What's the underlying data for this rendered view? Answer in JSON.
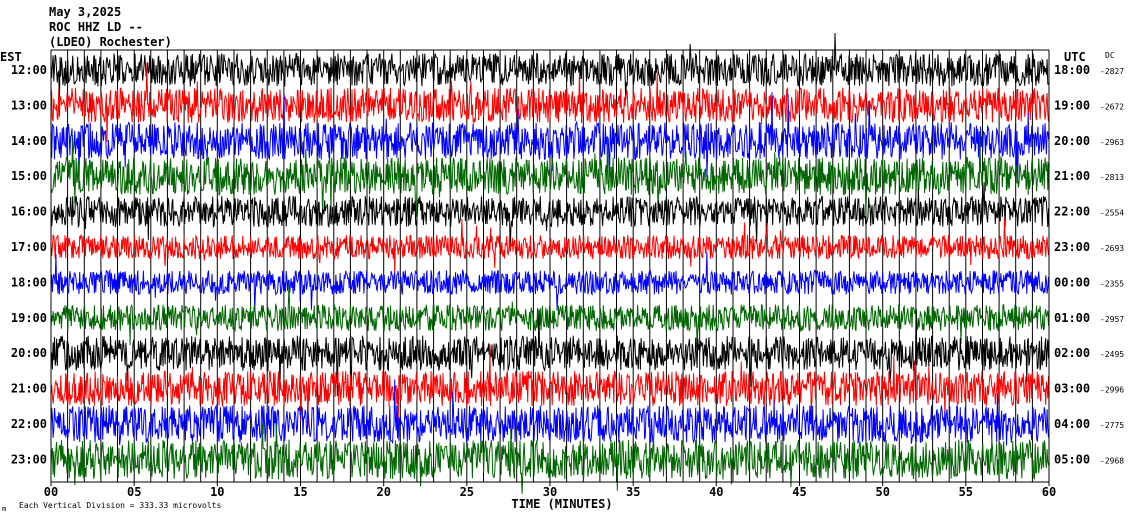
{
  "header": {
    "date": "May 3,2025",
    "station": "ROC HHZ LD --",
    "network": "(LDEO) Rochester)"
  },
  "labels": {
    "left_zone": "EST",
    "right_zone": "UTC",
    "dc_header": "DC",
    "xlabel": "TIME (MINUTES)",
    "footnote": "Each Vertical Division =  333.33 microvolts",
    "footnote_mark": "m"
  },
  "chart_data": {
    "type": "line",
    "title": "May 3,2025",
    "xlabel": "TIME (MINUTES)",
    "xlim": [
      0,
      60
    ],
    "xticks": [
      "00",
      "05",
      "10",
      "15",
      "20",
      "25",
      "30",
      "35",
      "40",
      "45",
      "50",
      "55",
      "60"
    ],
    "grid": "vertical lines every minute",
    "color_cycle": [
      "#000000",
      "#ff0000",
      "#0000ff",
      "#006600"
    ],
    "rows": [
      {
        "est": "12:00",
        "utc": "18:00",
        "dc": "-2827",
        "amp": 0.75
      },
      {
        "est": "13:00",
        "utc": "19:00",
        "dc": "-2672",
        "amp": 0.8
      },
      {
        "est": "14:00",
        "utc": "20:00",
        "dc": "-2963",
        "amp": 0.85
      },
      {
        "est": "15:00",
        "utc": "21:00",
        "dc": "-2813",
        "amp": 0.85
      },
      {
        "est": "16:00",
        "utc": "22:00",
        "dc": "-2554",
        "amp": 0.7
      },
      {
        "est": "17:00",
        "utc": "23:00",
        "dc": "-2693",
        "amp": 0.55
      },
      {
        "est": "18:00",
        "utc": "00:00",
        "dc": "-2355",
        "amp": 0.55
      },
      {
        "est": "19:00",
        "utc": "01:00",
        "dc": "-2957",
        "amp": 0.6
      },
      {
        "est": "20:00",
        "utc": "02:00",
        "dc": "-2495",
        "amp": 0.8
      },
      {
        "est": "21:00",
        "utc": "03:00",
        "dc": "-2996",
        "amp": 0.8
      },
      {
        "est": "22:00",
        "utc": "04:00",
        "dc": "-2775",
        "amp": 0.85
      },
      {
        "est": "23:00",
        "utc": "05:00",
        "dc": "-2968",
        "amp": 0.9
      }
    ]
  }
}
